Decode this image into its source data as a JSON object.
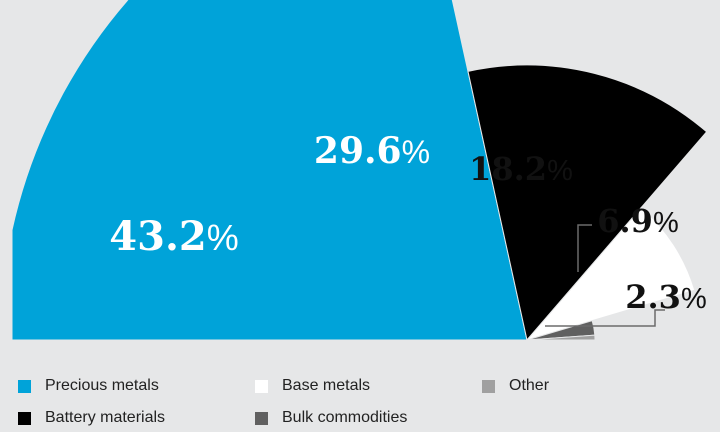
{
  "chart_data": {
    "type": "pie",
    "title": "",
    "slices": [
      {
        "label": "Precious metals",
        "value": 43.2,
        "display": "43.2",
        "color": "#00a3d9"
      },
      {
        "label": "Battery materials",
        "value": 29.6,
        "display": "29.6",
        "color": "#000000"
      },
      {
        "label": "Base metals",
        "value": 18.2,
        "display": "18.2",
        "color": "#ffffff"
      },
      {
        "label": "Bulk commodities",
        "value": 6.9,
        "display": "6.9",
        "color": "#606060"
      },
      {
        "label": "Other",
        "value": 2.3,
        "display": "2.3",
        "color": "#a0a0a0"
      }
    ],
    "percent_sign": "%",
    "legend": {
      "position": "bottom",
      "entries": [
        "Precious metals",
        "Base metals",
        "Other",
        "Battery materials",
        "Bulk commodities"
      ]
    }
  }
}
